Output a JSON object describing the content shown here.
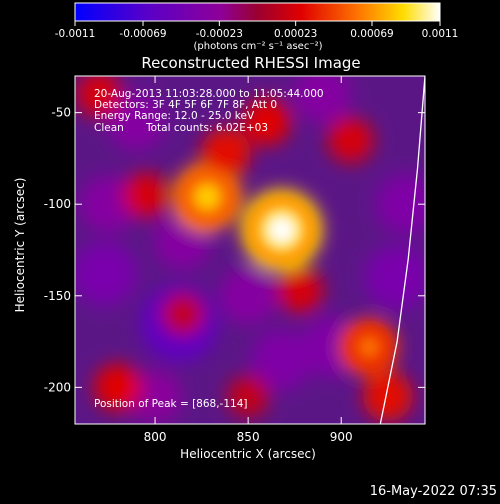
{
  "chart_data": {
    "type": "heatmap",
    "title": "Reconstructed RHESSI Image",
    "xlabel": "Heliocentric X (arcsec)",
    "ylabel": "Heliocentric Y (arcsec)",
    "xlim": [
      757,
      945
    ],
    "ylim": [
      -220,
      -30
    ],
    "x_ticks": [
      800,
      850,
      900
    ],
    "y_ticks": [
      -50,
      -100,
      -150,
      -200
    ],
    "colorbar": {
      "range": [
        -0.0011,
        0.0011
      ],
      "tick_values": [
        -0.0011,
        -0.00069,
        -0.00023,
        0.00023,
        0.00069,
        0.0011
      ],
      "tick_labels": [
        "-0.0011",
        "-0.00069",
        "-0.00023",
        "0.00023",
        "0.00069",
        "0.0011"
      ],
      "units_label": "(photons cm⁻² s⁻¹ asec⁻²)"
    },
    "annotations": {
      "time_range": "20-Aug-2013 11:03:28.000 to 11:05:44.000",
      "detectors": "Detectors: 3F 4F 5F 6F 7F 8F, Att 0",
      "energy_range": "Energy Range: 12.0 - 25.0 keV",
      "method": "Clean",
      "total_counts": "Total counts: 6.02E+03",
      "peak_position": "Position of Peak = [868,-114]"
    },
    "peak": {
      "x": 868,
      "y": -114
    },
    "sources": [
      {
        "x": 868,
        "y": -114,
        "value": 0.00115
      },
      {
        "x": 828,
        "y": -96,
        "value": 0.00085
      },
      {
        "x": 915,
        "y": -178,
        "value": 0.0006
      },
      {
        "x": 838,
        "y": -72,
        "value": 0.0004
      },
      {
        "x": 878,
        "y": -147,
        "value": 0.0003
      },
      {
        "x": 925,
        "y": -205,
        "value": 0.0004
      },
      {
        "x": 795,
        "y": -95,
        "value": 0.0003
      },
      {
        "x": 780,
        "y": -200,
        "value": 0.00035
      },
      {
        "x": 905,
        "y": -65,
        "value": 0.0003
      },
      {
        "x": 770,
        "y": -40,
        "value": 0.0003
      },
      {
        "x": 860,
        "y": -55,
        "value": 0.00035
      },
      {
        "x": 815,
        "y": -160,
        "value": 0.0002
      },
      {
        "x": 850,
        "y": -205,
        "value": 0.0002
      }
    ],
    "negative_regions": [
      {
        "x": 813,
        "y": -165,
        "value": -0.0006
      },
      {
        "x": 773,
        "y": -138,
        "value": -0.0004
      },
      {
        "x": 895,
        "y": -178,
        "value": -0.00035
      },
      {
        "x": 868,
        "y": -185,
        "value": -0.00035
      },
      {
        "x": 850,
        "y": -150,
        "value": -0.0003
      },
      {
        "x": 930,
        "y": -140,
        "value": -0.0004
      },
      {
        "x": 815,
        "y": -120,
        "value": -0.0003
      },
      {
        "x": 775,
        "y": -100,
        "value": -0.0003
      },
      {
        "x": 890,
        "y": -40,
        "value": -0.0003
      },
      {
        "x": 935,
        "y": -100,
        "value": -0.00035
      },
      {
        "x": 800,
        "y": -205,
        "value": -0.00025
      },
      {
        "x": 790,
        "y": -55,
        "value": -0.0003
      }
    ],
    "limb_curve": [
      {
        "x": 945,
        "y": -30
      },
      {
        "x": 941,
        "y": -80
      },
      {
        "x": 936,
        "y": -130
      },
      {
        "x": 930,
        "y": -175
      },
      {
        "x": 921,
        "y": -220
      }
    ]
  },
  "footer": {
    "timestamp": "16-May-2022 07:35"
  }
}
